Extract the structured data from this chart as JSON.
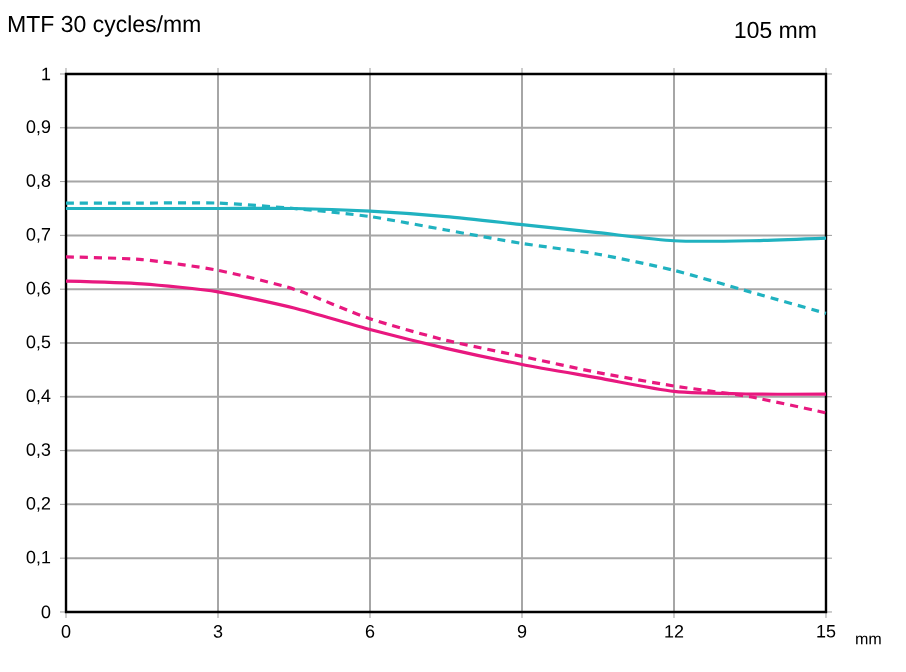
{
  "chart_data": {
    "type": "line",
    "title": "MTF 30 cycles/mm",
    "subtitle": "105 mm",
    "xlabel": "mm",
    "x": [
      0,
      1.5,
      3,
      4.5,
      6,
      7.5,
      9,
      10.5,
      12,
      13.5,
      15
    ],
    "series": [
      {
        "color": "#20b2c0",
        "line_style": "solid",
        "values": [
          0.75,
          0.75,
          0.75,
          0.75,
          0.745,
          0.735,
          0.72,
          0.705,
          0.69,
          0.69,
          0.695
        ]
      },
      {
        "color": "#20b2c0",
        "line_style": "dashed",
        "values": [
          0.76,
          0.76,
          0.76,
          0.75,
          0.735,
          0.71,
          0.685,
          0.665,
          0.635,
          0.595,
          0.555
        ]
      },
      {
        "color": "#e8187f",
        "line_style": "solid",
        "values": [
          0.615,
          0.61,
          0.595,
          0.565,
          0.525,
          0.49,
          0.46,
          0.435,
          0.41,
          0.405,
          0.405
        ]
      },
      {
        "color": "#e8187f",
        "line_style": "dashed",
        "values": [
          0.66,
          0.655,
          0.635,
          0.6,
          0.545,
          0.505,
          0.475,
          0.445,
          0.42,
          0.4,
          0.37
        ]
      }
    ],
    "xlim": [
      0,
      15
    ],
    "xticks": [
      0,
      3,
      6,
      9,
      12,
      15
    ],
    "ylim": [
      0,
      1
    ],
    "yticks": [
      0,
      {
        "value": 0.1,
        "label": "0,1"
      },
      {
        "value": 0.2,
        "label": "0,2"
      },
      {
        "value": 0.3,
        "label": "0,3"
      },
      {
        "value": 0.4,
        "label": "0,4"
      },
      {
        "value": 0.5,
        "label": "0,5"
      },
      {
        "value": 0.6,
        "label": "0,6"
      },
      {
        "value": 0.7,
        "label": "0,7"
      },
      {
        "value": 0.8,
        "label": "0,8"
      },
      {
        "value": 0.9,
        "label": "0,9"
      },
      1
    ],
    "grid": true,
    "marker": "none"
  }
}
